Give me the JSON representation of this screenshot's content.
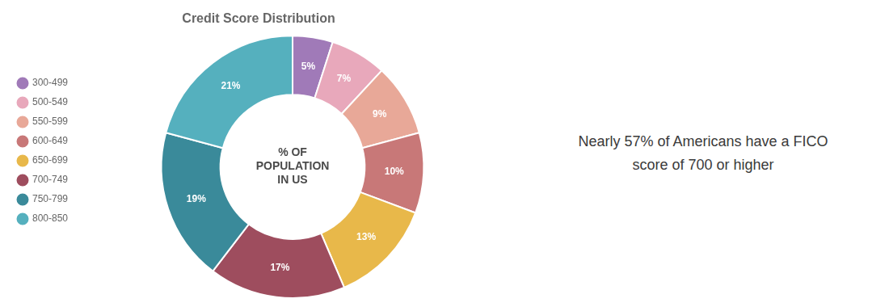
{
  "chart_data": {
    "type": "doughnut",
    "title": "Credit Score Distribution",
    "categories": [
      "300-499",
      "500-549",
      "550-599",
      "600-649",
      "650-699",
      "700-749",
      "750-799",
      "800-850"
    ],
    "values": [
      5,
      7,
      9,
      10,
      13,
      17,
      19,
      21
    ],
    "value_labels": [
      "5%",
      "7%",
      "9%",
      "10%",
      "13%",
      "17%",
      "19%",
      "21%"
    ],
    "colors": [
      "#a07ab8",
      "#e8a8bb",
      "#e8a898",
      "#c87878",
      "#e8b84a",
      "#9e4d5e",
      "#3a8a9a",
      "#55b0be"
    ],
    "data_labels": true,
    "legend": "left",
    "center_text": [
      "% OF",
      "POPULATION",
      "IN US"
    ],
    "annotations": [
      "Nearly 57% of Americans have a FICO",
      "score of 700 or higher"
    ]
  }
}
